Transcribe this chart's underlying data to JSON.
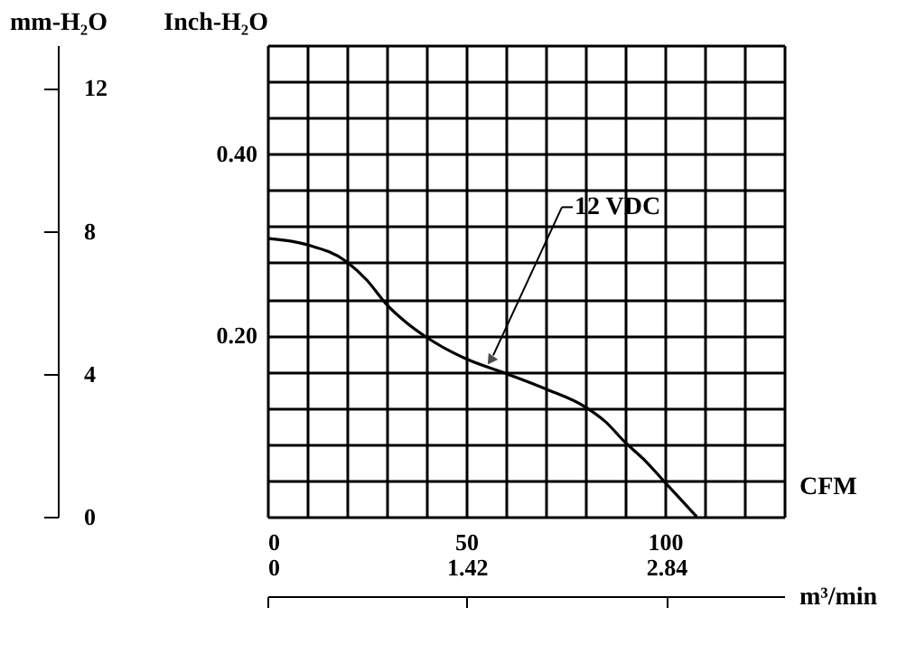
{
  "chart_data": {
    "type": "line",
    "x": [
      0,
      10,
      20,
      25,
      30,
      35,
      40,
      50,
      60,
      70,
      80,
      85,
      90,
      95,
      100,
      108
    ],
    "series": [
      {
        "color": "#000000",
        "values": [
          0.307,
          0.3,
          0.281,
          0.261,
          0.234,
          0.214,
          0.198,
          0.174,
          0.158,
          0.141,
          0.121,
          0.105,
          0.082,
          0.062,
          0.038,
          0
        ]
      }
    ],
    "xlabel": "CFM",
    "ylabel": "Inch-H₂O",
    "y2label": "mm-H₂O",
    "x2label": "m³/min",
    "xlim": [
      0,
      130
    ],
    "xticks": [
      0,
      {
        "value": 10,
        "label": null
      },
      {
        "value": 20,
        "label": null
      },
      {
        "value": 30,
        "label": null
      },
      {
        "value": 40,
        "label": null
      },
      50,
      {
        "value": 60,
        "label": null
      },
      {
        "value": 70,
        "label": null
      },
      {
        "value": 80,
        "label": null
      },
      {
        "value": 90,
        "label": null
      },
      100,
      {
        "value": 110,
        "label": null
      },
      {
        "value": 120,
        "label": null
      },
      {
        "value": 130,
        "label": null
      }
    ],
    "ylim": [
      0,
      0.52
    ],
    "yticks": [
      {
        "value": 0,
        "label": null
      },
      {
        "value": 0.04,
        "label": null
      },
      {
        "value": 0.08,
        "label": null
      },
      {
        "value": 0.12,
        "label": null
      },
      {
        "value": 0.16,
        "label": null
      },
      {
        "value": 0.2,
        "label": "0.20"
      },
      {
        "value": 0.24,
        "label": null
      },
      {
        "value": 0.28,
        "label": null
      },
      {
        "value": 0.32,
        "label": null
      },
      {
        "value": 0.36,
        "label": null
      },
      {
        "value": 0.4,
        "label": "0.40"
      },
      {
        "value": 0.44,
        "label": null
      },
      {
        "value": 0.48,
        "label": null
      },
      {
        "value": 0.52,
        "label": null
      }
    ],
    "y2lim": [
      0,
      13.2
    ],
    "y2ticks": [
      0,
      4,
      8,
      12
    ],
    "x2lim": [
      0,
      3.68
    ],
    "x2ticks": [
      0,
      1.42,
      2.84
    ],
    "grid": true,
    "marker": "none",
    "line_style": "solid",
    "annotations": [
      {
        "text": "12 VDC",
        "x": 55,
        "y": 0.166
      }
    ]
  }
}
